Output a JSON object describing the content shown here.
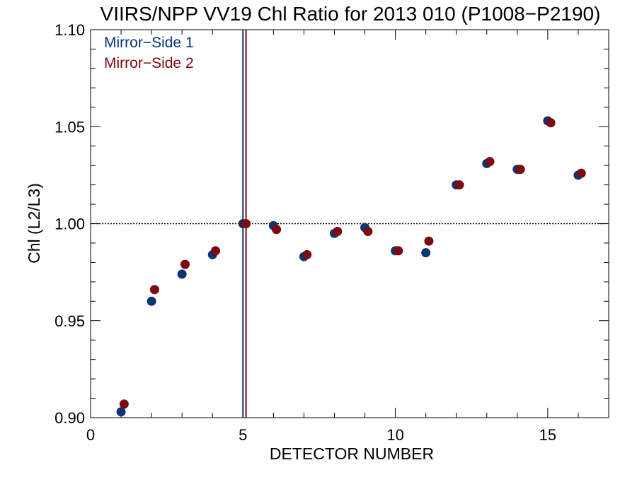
{
  "chart_data": {
    "type": "scatter",
    "title": "VIIRS/NPP VV19 Chl Ratio for 2013 010 (P1008−P2190)",
    "xlabel": "DETECTOR NUMBER",
    "ylabel": "Chl (L2/L3)",
    "xlim": [
      0,
      17
    ],
    "ylim": [
      0.9,
      1.1
    ],
    "x_ticks": [
      0,
      5,
      10,
      15
    ],
    "x_tick_labels": [
      "0",
      "5",
      "10",
      "15"
    ],
    "y_ticks": [
      0.9,
      0.95,
      1.0,
      1.05,
      1.1
    ],
    "y_tick_labels": [
      "0.90",
      "0.95",
      "1.00",
      "1.05",
      "1.10"
    ],
    "grid": false,
    "legend_position": "top-left",
    "reference_line_y": 1.0,
    "reference_detector": 5,
    "series": [
      {
        "name": "Mirror−Side 1",
        "color": "#0b3476",
        "x": [
          1,
          2,
          3,
          4,
          5,
          6,
          7,
          8,
          9,
          10,
          11,
          12,
          13,
          14,
          15,
          16
        ],
        "values": [
          0.903,
          0.96,
          0.974,
          0.984,
          1.0,
          0.999,
          0.983,
          0.995,
          0.998,
          0.986,
          0.985,
          1.02,
          1.031,
          1.028,
          1.053,
          1.025
        ]
      },
      {
        "name": "Mirror−Side 2",
        "color": "#7b0a11",
        "x": [
          1.1,
          2.1,
          3.1,
          4.1,
          5.1,
          6.1,
          7.1,
          8.1,
          9.1,
          10.1,
          11.1,
          12.1,
          13.1,
          14.1,
          15.1,
          16.1
        ],
        "values": [
          0.907,
          0.966,
          0.979,
          0.986,
          1.0,
          0.997,
          0.984,
          0.996,
          0.996,
          0.986,
          0.991,
          1.02,
          1.032,
          1.028,
          1.052,
          1.026
        ]
      }
    ]
  }
}
